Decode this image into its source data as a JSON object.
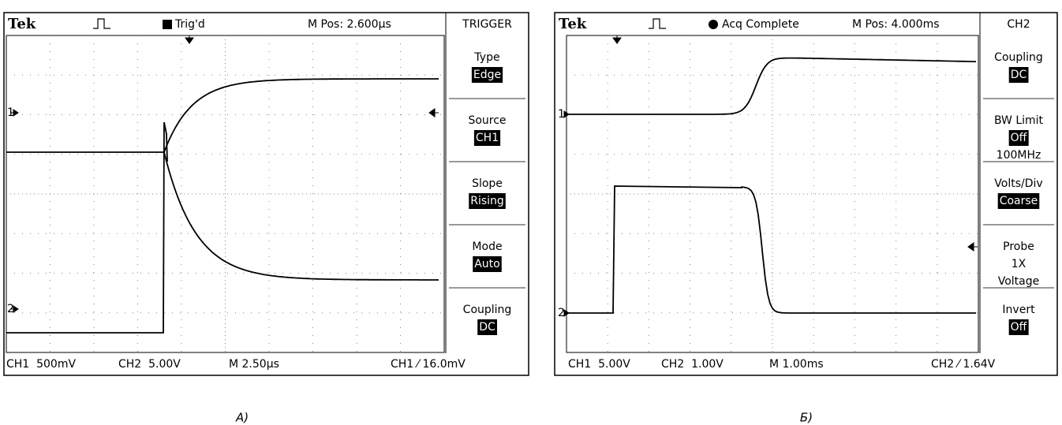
{
  "scopes": [
    {
      "brand": "Tek",
      "status": "Trig'd",
      "position": "M Pos: 2.600µs",
      "menu_title": "TRIGGER",
      "menu": [
        {
          "label": "Type",
          "value": "Edge"
        },
        {
          "label": "Source",
          "value": "CH1"
        },
        {
          "label": "Slope",
          "value": "Rising"
        },
        {
          "label": "Mode",
          "value": "Auto"
        },
        {
          "label": "Coupling",
          "value": "DC"
        }
      ],
      "footer": [
        "CH1  500mV",
        "CH2  5.00V",
        "M 2.50µs",
        "CH1 ⁄ 16.0mV"
      ],
      "markers": [
        "1",
        "2"
      ]
    },
    {
      "brand": "Tek",
      "status": "Acq Complete",
      "position": "M Pos: 4.000ms",
      "menu_title": "CH2",
      "menu": [
        {
          "label": "Coupling",
          "value": "DC"
        },
        {
          "label": "BW Limit",
          "value": "Off",
          "extra": [
            "100MHz"
          ]
        },
        {
          "label": "Volts/Div",
          "value": "Coarse"
        },
        {
          "label": "Probe",
          "extra": [
            "1X",
            "Voltage"
          ]
        },
        {
          "label": "Invert",
          "value": "Off"
        }
      ],
      "footer": [
        "CH1  5.00V",
        "CH2  1.00V",
        "M 1.00ms",
        "CH2 ⁄ 1.64V"
      ],
      "markers": [
        "1",
        "2"
      ]
    }
  ],
  "captions": [
    "А)",
    "Б)"
  ]
}
